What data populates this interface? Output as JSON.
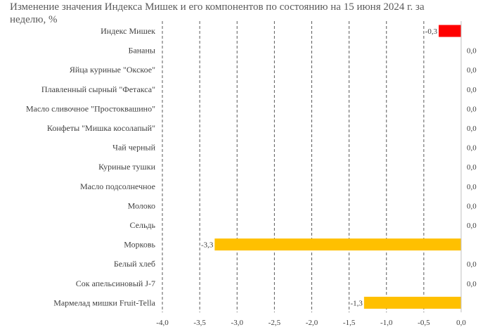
{
  "chart_data": {
    "type": "bar",
    "orientation": "horizontal",
    "title": "Изменение значения Индекса Мишек и его компонентов по состоянию на 15 июня 2024 г. за неделю, %",
    "categories": [
      "Индекс Мишек",
      "Бананы",
      "Яйца куриные \"Окское\"",
      "Плавленный сырный \"Фетакса\"",
      "Масло сливочное \"Простоквашино\"",
      "Конфеты \"Мишка косолапый\"",
      "Чай черный",
      "Куриные тушки",
      "Масло подсолнечное",
      "Молоко",
      "Сельдь",
      "Морковь",
      "Белый хлеб",
      "Сок апельсиновый J-7",
      "Мармелад мишки Fruit-Tella"
    ],
    "values": [
      -0.3,
      0.0,
      0.0,
      0.0,
      0.0,
      0.0,
      0.0,
      0.0,
      0.0,
      0.0,
      0.0,
      -3.3,
      0.0,
      0.0,
      -1.3
    ],
    "data_labels": [
      "-0,3",
      "0,0",
      "0,0",
      "0,0",
      "0,0",
      "0,0",
      "0,0",
      "0,0",
      "0,0",
      "0,0",
      "0,0",
      "-3,3",
      "0,0",
      "0,0",
      "-1,3"
    ],
    "bar_colors": [
      "#ff0000",
      "#ffc000",
      "#ffc000",
      "#ffc000",
      "#ffc000",
      "#ffc000",
      "#ffc000",
      "#ffc000",
      "#ffc000",
      "#ffc000",
      "#ffc000",
      "#ffc000",
      "#ffc000",
      "#ffc000",
      "#ffc000"
    ],
    "xlim": [
      -4.0,
      0.0
    ],
    "xticks": [
      -4.0,
      -3.5,
      -3.0,
      -2.5,
      -2.0,
      -1.5,
      -1.0,
      -0.5,
      0.0
    ],
    "xtick_labels": [
      "-4,0",
      "-3,5",
      "-3,0",
      "-2,5",
      "-2,0",
      "-1,5",
      "-1,0",
      "-0,5",
      "0,0"
    ],
    "grid": "vertical dashed",
    "legend": "none",
    "xlabel": "",
    "ylabel": ""
  }
}
